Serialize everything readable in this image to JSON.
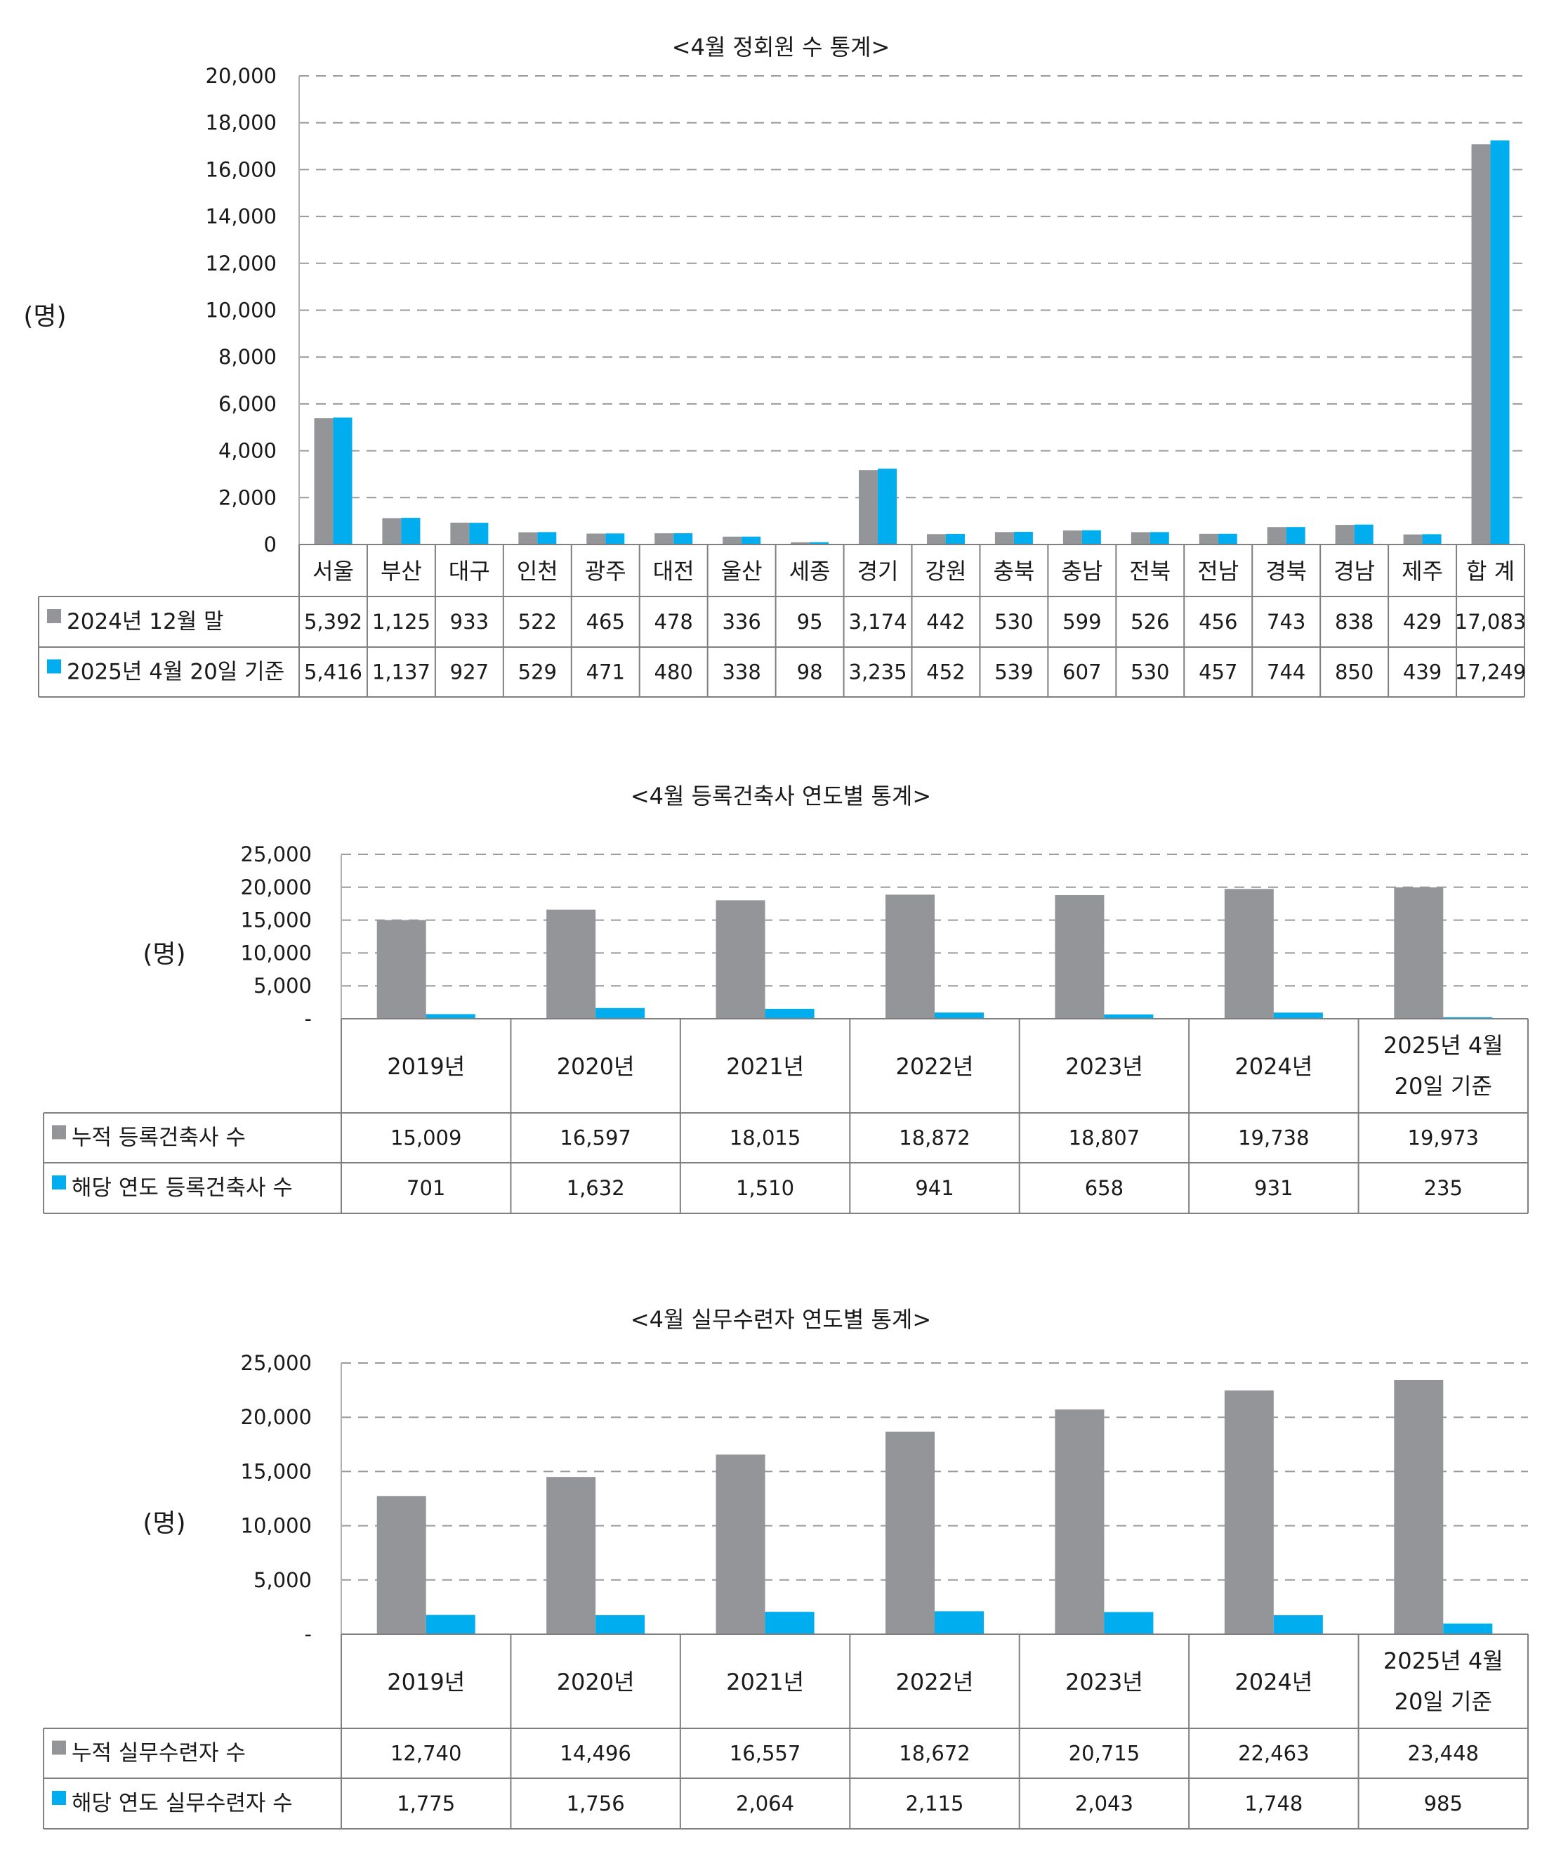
{
  "colors": {
    "series_a": "#939598",
    "series_b": "#00aeef",
    "grid": "#9a9a9a",
    "table_border": "#7f7f7f"
  },
  "chart_data": [
    {
      "type": "bar",
      "title": "<4월 정회원 수 통계>",
      "ylabel": "(명)",
      "ylim": [
        0,
        20000
      ],
      "yticks": [
        "0",
        "2,000",
        "4,000",
        "6,000",
        "8,000",
        "10,000",
        "12,000",
        "14,000",
        "16,000",
        "18,000",
        "20,000"
      ],
      "grid": true,
      "legend": "data-table",
      "categories": [
        "서울",
        "부산",
        "대구",
        "인천",
        "광주",
        "대전",
        "울산",
        "세종",
        "경기",
        "강원",
        "충북",
        "충남",
        "전북",
        "전남",
        "경북",
        "경남",
        "제주",
        "합 계"
      ],
      "series": [
        {
          "name": "2024년 12월 말",
          "values": [
            5392,
            1125,
            933,
            522,
            465,
            478,
            336,
            95,
            3174,
            442,
            530,
            599,
            526,
            456,
            743,
            838,
            429,
            17083
          ],
          "labels": [
            "5,392",
            "1,125",
            "933",
            "522",
            "465",
            "478",
            "336",
            "95",
            "3,174",
            "442",
            "530",
            "599",
            "526",
            "456",
            "743",
            "838",
            "429",
            "17,083"
          ]
        },
        {
          "name": "2025년 4월 20일 기준",
          "values": [
            5416,
            1137,
            927,
            529,
            471,
            480,
            338,
            98,
            3235,
            452,
            539,
            607,
            530,
            457,
            744,
            850,
            439,
            17249
          ],
          "labels": [
            "5,416",
            "1,137",
            "927",
            "529",
            "471",
            "480",
            "338",
            "98",
            "3,235",
            "452",
            "539",
            "607",
            "530",
            "457",
            "744",
            "850",
            "439",
            "17,249"
          ]
        }
      ]
    },
    {
      "type": "bar",
      "title": "<4월 등록건축사 연도별 통계>",
      "ylabel": "(명)",
      "ylim": [
        0,
        25000
      ],
      "yticks": [
        "-",
        "5,000",
        "10,000",
        "15,000",
        "20,000",
        "25,000"
      ],
      "grid": true,
      "legend": "data-table",
      "categories": [
        "2019년",
        "2020년",
        "2021년",
        "2022년",
        "2023년",
        "2024년",
        "2025년 4월\n20일 기준"
      ],
      "series": [
        {
          "name": "누적 등록건축사 수",
          "values": [
            15009,
            16597,
            18015,
            18872,
            18807,
            19738,
            19973
          ],
          "labels": [
            "15,009",
            "16,597",
            "18,015",
            "18,872",
            "18,807",
            "19,738",
            "19,973"
          ]
        },
        {
          "name": "해당 연도 등록건축사 수",
          "values": [
            701,
            1632,
            1510,
            941,
            658,
            931,
            235
          ],
          "labels": [
            "701",
            "1,632",
            "1,510",
            "941",
            "658",
            "931",
            "235"
          ]
        }
      ]
    },
    {
      "type": "bar",
      "title": "<4월 실무수련자 연도별 통계>",
      "ylabel": "(명)",
      "ylim": [
        0,
        25000
      ],
      "yticks": [
        "-",
        "5,000",
        "10,000",
        "15,000",
        "20,000",
        "25,000"
      ],
      "grid": true,
      "legend": "data-table",
      "categories": [
        "2019년",
        "2020년",
        "2021년",
        "2022년",
        "2023년",
        "2024년",
        "2025년 4월\n20일 기준"
      ],
      "series": [
        {
          "name": "누적 실무수련자 수",
          "values": [
            12740,
            14496,
            16557,
            18672,
            20715,
            22463,
            23448
          ],
          "labels": [
            "12,740",
            "14,496",
            "16,557",
            "18,672",
            "20,715",
            "22,463",
            "23,448"
          ]
        },
        {
          "name": "해당 연도 실무수련자 수",
          "values": [
            1775,
            1756,
            2064,
            2115,
            2043,
            1748,
            985
          ],
          "labels": [
            "1,775",
            "1,756",
            "2,064",
            "2,115",
            "2,043",
            "1,748",
            "985"
          ]
        }
      ]
    }
  ]
}
